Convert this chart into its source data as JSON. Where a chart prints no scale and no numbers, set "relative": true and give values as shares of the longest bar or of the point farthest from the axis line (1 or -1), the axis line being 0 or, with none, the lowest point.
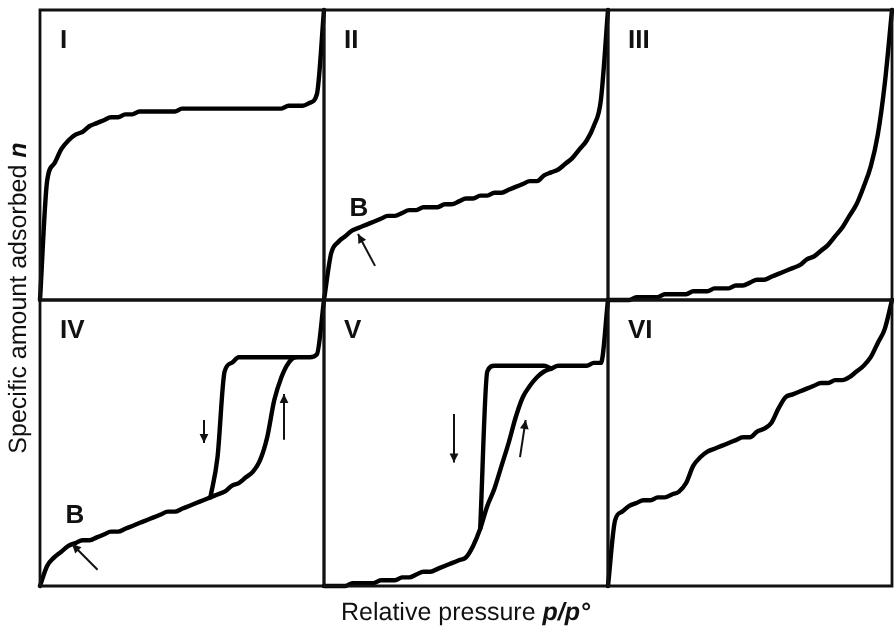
{
  "chart_data": [
    {
      "type": "line",
      "title": "I",
      "ylabel": "Specific amount adsorbed n",
      "relative": true,
      "categories": [
        null,
        null,
        null,
        null,
        null,
        null,
        null,
        null,
        null,
        null,
        null,
        null,
        null,
        null,
        null,
        null,
        null,
        null,
        null,
        null,
        null,
        null,
        null,
        null,
        null,
        null,
        null,
        null,
        null,
        null,
        null,
        null,
        null,
        null,
        null,
        null,
        null,
        null,
        null,
        null,
        null
      ],
      "series": [
        {
          "color": "#000000",
          "values": [
            0,
            0.41,
            0.47,
            0.52,
            0.55,
            0.57,
            0.58,
            0.6,
            0.61,
            0.62,
            0.63,
            0.63,
            0.64,
            0.64,
            0.65,
            0.65,
            0.65,
            0.65,
            0.65,
            0.65,
            0.66,
            0.66,
            0.66,
            0.66,
            0.66,
            0.66,
            0.66,
            0.66,
            0.66,
            0.66,
            0.66,
            0.66,
            0.66,
            0.66,
            0.66,
            0.67,
            0.67,
            0.67,
            0.68,
            0.71,
            1
          ]
        }
      ]
    },
    {
      "type": "line",
      "title": "II",
      "annotations": [
        "B"
      ],
      "relative": true,
      "categories": [
        null,
        null,
        null,
        null,
        null,
        null,
        null,
        null,
        null,
        null,
        null,
        null,
        null,
        null,
        null,
        null,
        null,
        null,
        null,
        null,
        null,
        null,
        null,
        null,
        null,
        null,
        null,
        null,
        null,
        null,
        null,
        null,
        null,
        null,
        null,
        null,
        null,
        null,
        null,
        null,
        null
      ],
      "series": [
        {
          "color": "#000000",
          "values": [
            0,
            0.16,
            0.2,
            0.22,
            0.24,
            0.25,
            0.26,
            0.27,
            0.28,
            0.29,
            0.29,
            0.3,
            0.31,
            0.31,
            0.32,
            0.32,
            0.32,
            0.33,
            0.33,
            0.34,
            0.35,
            0.35,
            0.36,
            0.36,
            0.37,
            0.37,
            0.38,
            0.39,
            0.4,
            0.41,
            0.41,
            0.43,
            0.44,
            0.45,
            0.47,
            0.49,
            0.52,
            0.55,
            0.6,
            0.69,
            1
          ]
        }
      ]
    },
    {
      "type": "line",
      "title": "III",
      "relative": true,
      "categories": [
        null,
        null,
        null,
        null,
        null,
        null,
        null,
        null,
        null,
        null,
        null,
        null,
        null,
        null,
        null,
        null,
        null,
        null,
        null,
        null,
        null,
        null,
        null,
        null,
        null,
        null,
        null,
        null,
        null,
        null,
        null,
        null,
        null,
        null,
        null,
        null,
        null,
        null,
        null,
        null,
        null
      ],
      "series": [
        {
          "color": "#000000",
          "values": [
            0,
            0,
            0,
            0,
            0.01,
            0.01,
            0.01,
            0.01,
            0.02,
            0.02,
            0.02,
            0.02,
            0.03,
            0.03,
            0.03,
            0.04,
            0.04,
            0.04,
            0.05,
            0.05,
            0.06,
            0.07,
            0.07,
            0.08,
            0.09,
            0.1,
            0.11,
            0.12,
            0.14,
            0.15,
            0.17,
            0.19,
            0.22,
            0.25,
            0.29,
            0.33,
            0.39,
            0.46,
            0.57,
            0.75,
            1
          ]
        }
      ]
    },
    {
      "type": "line",
      "title": "IV",
      "annotations": [
        "B"
      ],
      "relative": true,
      "categories": [
        null,
        null,
        null,
        null,
        null,
        null,
        null,
        null,
        null,
        null,
        null,
        null,
        null,
        null,
        null,
        null,
        null,
        null,
        null,
        null,
        null,
        null,
        null,
        null,
        null,
        null,
        null,
        null,
        null,
        null,
        null,
        null,
        null,
        null,
        null,
        null,
        null,
        null,
        null,
        null,
        null
      ],
      "series": [
        {
          "color": "#000000",
          "values": [
            0,
            0.07,
            0.1,
            0.12,
            0.14,
            0.15,
            0.16,
            0.16,
            0.17,
            0.18,
            0.19,
            0.19,
            0.2,
            0.21,
            0.22,
            0.23,
            0.24,
            0.25,
            0.26,
            0.26,
            0.27,
            0.28,
            0.29,
            0.3,
            0.31,
            0.32,
            0.33,
            0.35,
            0.36,
            0.38,
            0.4,
            0.44,
            0.52,
            0.65,
            0.73,
            0.78,
            0.8,
            0.8,
            0.8,
            0.81,
            1
          ]
        },
        {
          "color": "#000000",
          "values": [
            null,
            null,
            null,
            null,
            null,
            null,
            null,
            null,
            null,
            null,
            null,
            null,
            null,
            null,
            null,
            null,
            null,
            null,
            null,
            null,
            null,
            null,
            null,
            null,
            0.31,
            0.45,
            0.75,
            0.78,
            0.8,
            0.8,
            0.8,
            0.8,
            0.8,
            0.8,
            0.8,
            0.8,
            0.8,
            null,
            null,
            null,
            null
          ]
        }
      ]
    },
    {
      "type": "line",
      "title": "V",
      "xlabel": "Relative pressure p/p°",
      "relative": true,
      "categories": [
        null,
        null,
        null,
        null,
        null,
        null,
        null,
        null,
        null,
        null,
        null,
        null,
        null,
        null,
        null,
        null,
        null,
        null,
        null,
        null,
        null,
        null,
        null,
        null,
        null,
        null,
        null,
        null,
        null,
        null,
        null,
        null,
        null,
        null,
        null,
        null,
        null,
        null,
        null,
        null,
        null
      ],
      "series": [
        {
          "color": "#000000",
          "values": [
            0,
            0,
            0,
            0,
            0.01,
            0.01,
            0.01,
            0.01,
            0.02,
            0.02,
            0.02,
            0.03,
            0.03,
            0.04,
            0.05,
            0.05,
            0.06,
            0.07,
            0.08,
            0.09,
            0.1,
            0.14,
            0.2,
            0.28,
            0.34,
            0.42,
            0.5,
            0.59,
            0.66,
            0.7,
            0.73,
            0.75,
            0.76,
            0.77,
            0.77,
            0.77,
            0.77,
            0.77,
            0.78,
            0.78,
            1
          ]
        },
        {
          "color": "#000000",
          "values": [
            null,
            null,
            null,
            null,
            null,
            null,
            null,
            null,
            null,
            null,
            null,
            null,
            null,
            null,
            null,
            null,
            null,
            null,
            null,
            null,
            null,
            null,
            0.2,
            0.75,
            0.77,
            0.77,
            0.77,
            0.77,
            0.77,
            0.77,
            0.77,
            0.77,
            0.76,
            null,
            null,
            null,
            null,
            null,
            null,
            null,
            null
          ]
        }
      ]
    },
    {
      "type": "line",
      "title": "VI",
      "relative": true,
      "categories": [
        null,
        null,
        null,
        null,
        null,
        null,
        null,
        null,
        null,
        null,
        null,
        null,
        null,
        null,
        null,
        null,
        null,
        null,
        null,
        null,
        null,
        null,
        null,
        null,
        null,
        null,
        null,
        null,
        null,
        null,
        null,
        null,
        null,
        null,
        null,
        null,
        null,
        null,
        null,
        null,
        null
      ],
      "series": [
        {
          "color": "#000000",
          "values": [
            0,
            0.23,
            0.26,
            0.28,
            0.29,
            0.3,
            0.3,
            0.31,
            0.31,
            0.32,
            0.33,
            0.36,
            0.42,
            0.45,
            0.47,
            0.48,
            0.49,
            0.5,
            0.51,
            0.52,
            0.52,
            0.54,
            0.55,
            0.57,
            0.62,
            0.66,
            0.67,
            0.68,
            0.69,
            0.7,
            0.71,
            0.71,
            0.72,
            0.72,
            0.73,
            0.75,
            0.77,
            0.8,
            0.85,
            0.9,
            1
          ]
        }
      ]
    }
  ]
}
